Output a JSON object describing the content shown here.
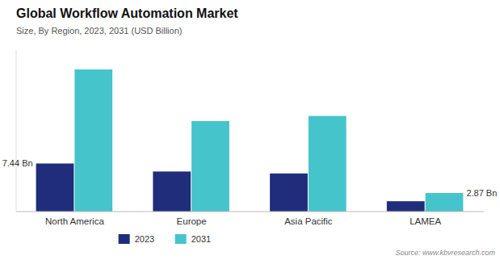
{
  "chart_data": {
    "type": "bar",
    "title": "Global Workflow Automation Market",
    "subtitle": "Size, By Region, 2023, 2031 (USD Billion)",
    "source": "Source: www.kbvresearch.com",
    "categories": [
      "North America",
      "Europe",
      "Asia Pacific",
      "LAMEA"
    ],
    "series": [
      {
        "name": "2023",
        "color": "#1f2d7b",
        "values": [
          7.44,
          6.2,
          5.9,
          1.6
        ],
        "value_labels": [
          "7.44 Bn",
          null,
          null,
          null
        ]
      },
      {
        "name": "2031",
        "color": "#45c4cc",
        "values": [
          22.0,
          14.0,
          14.8,
          2.87
        ],
        "value_labels": [
          null,
          null,
          null,
          "2.87 Bn"
        ]
      }
    ],
    "ylim": [
      0,
      25
    ],
    "tick_labels": "x",
    "legend": "bottom"
  }
}
